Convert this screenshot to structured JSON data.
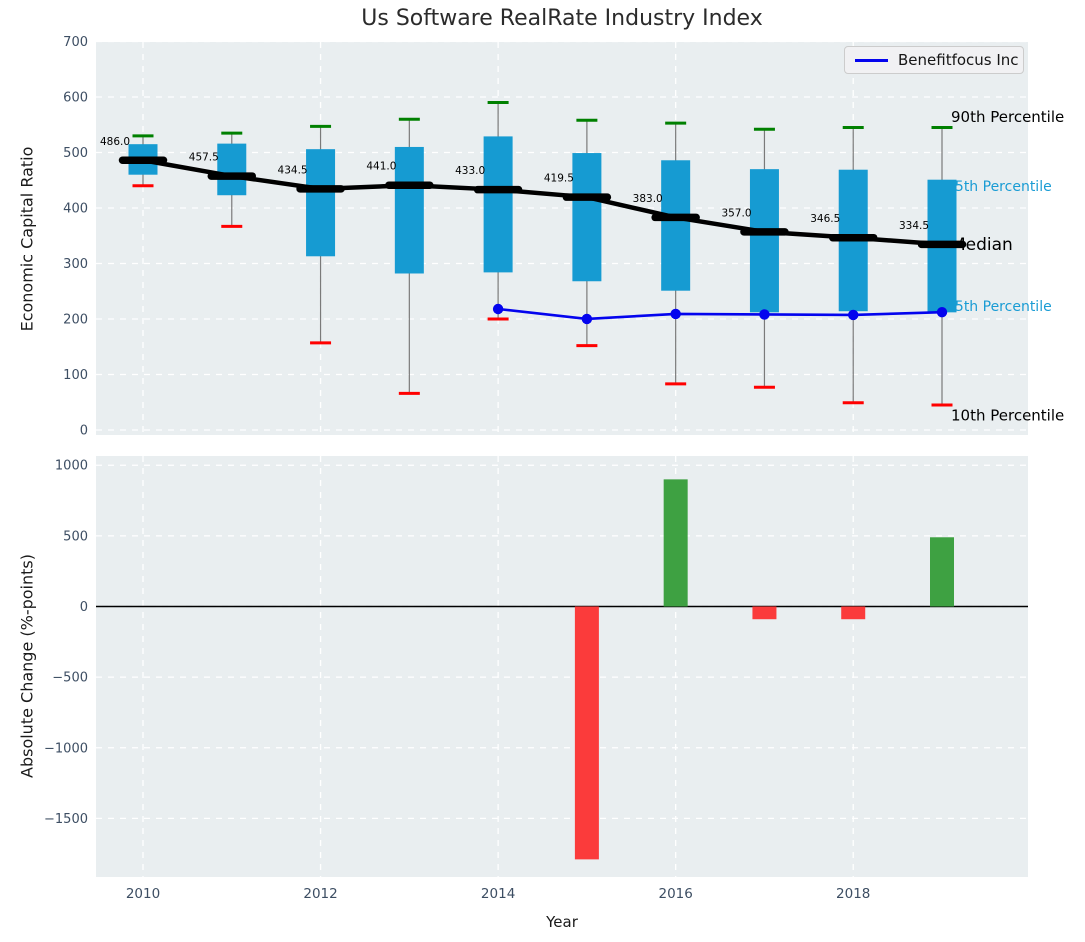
{
  "title": "Us Software RealRate Industry Index",
  "legend": {
    "label": "Benefitfocus Inc",
    "line_color": "#0404ee"
  },
  "axes": {
    "top": {
      "ylabel": "Economic Capital Ratio",
      "yticks": [
        0,
        100,
        200,
        300,
        400,
        500,
        600,
        700
      ],
      "ylim": [
        0,
        700
      ]
    },
    "bottom": {
      "ylabel": "Absolute Change (%-points)",
      "xlabel": "Year",
      "yticks": [
        1000,
        500,
        0,
        -500,
        -1000,
        -1500
      ],
      "ylim": [
        -1915,
        1065
      ],
      "xticks": [
        2010,
        2012,
        2014,
        2016,
        2018
      ]
    }
  },
  "annotations": [
    {
      "text": "90th Percentile",
      "value": 564,
      "color": "#000000",
      "size": 15
    },
    {
      "text": "75th Percentile",
      "value": 439.5,
      "color": "#1a9cd4",
      "size": 14
    },
    {
      "text": "Median",
      "value": 335,
      "color": "#000000",
      "size": 17
    },
    {
      "text": "25th Percentile",
      "value": 223.5,
      "color": "#1a9cd4",
      "size": 14
    },
    {
      "text": "10th Percentile",
      "value": 27,
      "color": "#000000",
      "size": 15
    }
  ],
  "colors": {
    "plot_bg": "#e9eef0",
    "grid": "#ffffff",
    "tick_label": "#3d4e63",
    "box_fill": "#169bd2",
    "median": "#000000",
    "whisker": "#7a7a7a",
    "p90_cap": "#008000",
    "p10_cap": "#ff0000",
    "company_line": "#0404ee",
    "bar_positive": "#3ea142",
    "bar_negative": "#fb3b3b",
    "zero_line": "#000000"
  },
  "chart_data": [
    {
      "type": "boxplot",
      "title": "Us Software RealRate Industry Index",
      "ylabel": "Economic Capital Ratio",
      "ylim": [
        0,
        700
      ],
      "grid": true,
      "legend_position": "upper right",
      "x": [
        2010,
        2011,
        2012,
        2013,
        2014,
        2015,
        2016,
        2017,
        2018,
        2019
      ],
      "p90": [
        530,
        535,
        547,
        560,
        590,
        558,
        553,
        542,
        545,
        545
      ],
      "p75": [
        515,
        516,
        506,
        510,
        529,
        499,
        486,
        470,
        469,
        451
      ],
      "median": [
        486.0,
        457.5,
        434.5,
        441.0,
        433.0,
        419.5,
        383.0,
        357.0,
        346.5,
        334.5
      ],
      "p25": [
        460,
        423,
        313,
        282,
        284,
        268,
        251,
        212,
        214,
        212
      ],
      "p10": [
        440,
        367,
        157,
        66,
        200,
        152,
        83,
        77,
        49,
        45
      ],
      "median_labels": [
        "486.0",
        "457.5",
        "434.5",
        "441.0",
        "433.0",
        "419.5",
        "383.0",
        "357.0",
        "346.5",
        "334.5"
      ],
      "series": [
        {
          "name": "Benefitfocus Inc",
          "x": [
            2014,
            2015,
            2016,
            2017,
            2018,
            2019
          ],
          "values": [
            218.0,
            200.1,
            209.1,
            208.2,
            207.3,
            212.2
          ]
        }
      ]
    },
    {
      "type": "bar",
      "ylabel": "Absolute Change (%-points)",
      "xlabel": "Year",
      "ylim": [
        -1915,
        1065
      ],
      "grid": true,
      "x": [
        2015,
        2016,
        2017,
        2018,
        2019
      ],
      "values": [
        -1790,
        900,
        -90,
        -90,
        490
      ]
    }
  ]
}
